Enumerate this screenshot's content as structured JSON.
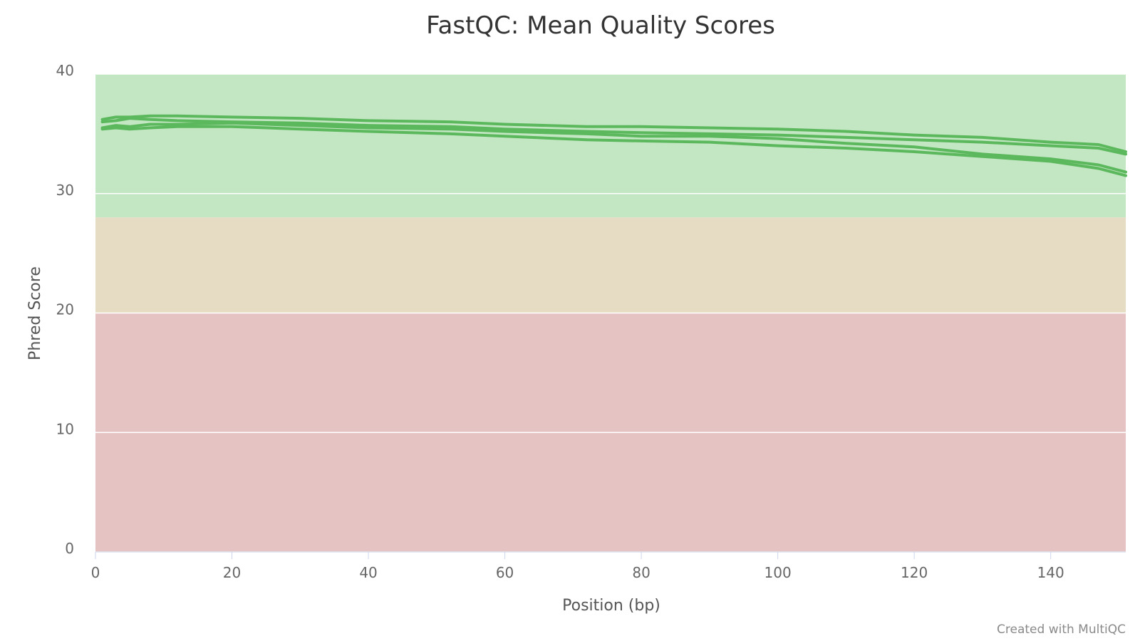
{
  "chart_data": {
    "type": "line",
    "title": "FastQC: Mean Quality Scores",
    "xlabel": "Position (bp)",
    "ylabel": "Phred Score",
    "xlim": [
      0,
      151
    ],
    "ylim": [
      0,
      40
    ],
    "x_ticks": [
      0,
      20,
      40,
      60,
      80,
      100,
      120,
      140
    ],
    "y_ticks": [
      0,
      10,
      20,
      30,
      40
    ],
    "grid": true,
    "legend": "none",
    "series_color": "#5cb85c",
    "bands": [
      {
        "from": 28,
        "to": 40,
        "color": "#c3e6c3"
      },
      {
        "from": 20,
        "to": 28,
        "color": "#e6dcc3"
      },
      {
        "from": 0,
        "to": 20,
        "color": "#e6c3c3"
      }
    ],
    "series": [
      {
        "x": [
          1,
          3,
          5,
          8,
          12,
          20,
          30,
          40,
          52,
          60,
          72,
          80,
          90,
          100,
          110,
          120,
          130,
          140,
          147,
          151
        ],
        "values": [
          36.2,
          36.4,
          36.4,
          36.5,
          36.5,
          36.4,
          36.3,
          36.1,
          36.0,
          35.8,
          35.6,
          35.6,
          35.5,
          35.4,
          35.2,
          34.9,
          34.7,
          34.3,
          34.1,
          33.5
        ]
      },
      {
        "x": [
          1,
          3,
          5,
          8,
          12,
          20,
          30,
          40,
          52,
          60,
          72,
          80,
          90,
          100,
          110,
          120,
          130,
          140,
          147,
          151
        ],
        "values": [
          36.0,
          36.1,
          36.3,
          36.2,
          36.1,
          36.0,
          35.9,
          35.7,
          35.6,
          35.4,
          35.2,
          35.1,
          35.0,
          34.9,
          34.7,
          34.5,
          34.3,
          34.0,
          33.8,
          33.3
        ]
      },
      {
        "x": [
          1,
          3,
          5,
          8,
          12,
          20,
          30,
          40,
          52,
          60,
          72,
          80,
          90,
          100,
          110,
          120,
          130,
          140,
          147,
          151
        ],
        "values": [
          35.5,
          35.7,
          35.6,
          35.8,
          35.8,
          35.9,
          35.7,
          35.5,
          35.4,
          35.2,
          35.0,
          34.8,
          34.8,
          34.6,
          34.2,
          33.9,
          33.3,
          32.9,
          32.4,
          31.8
        ]
      },
      {
        "x": [
          1,
          3,
          5,
          8,
          12,
          20,
          30,
          40,
          52,
          60,
          72,
          80,
          90,
          100,
          110,
          120,
          130,
          140,
          147,
          151
        ],
        "values": [
          35.4,
          35.5,
          35.4,
          35.5,
          35.6,
          35.6,
          35.4,
          35.2,
          35.0,
          34.8,
          34.5,
          34.4,
          34.3,
          34.0,
          33.8,
          33.5,
          33.1,
          32.7,
          32.1,
          31.5
        ]
      }
    ]
  },
  "credit": "Created with MultiQC"
}
